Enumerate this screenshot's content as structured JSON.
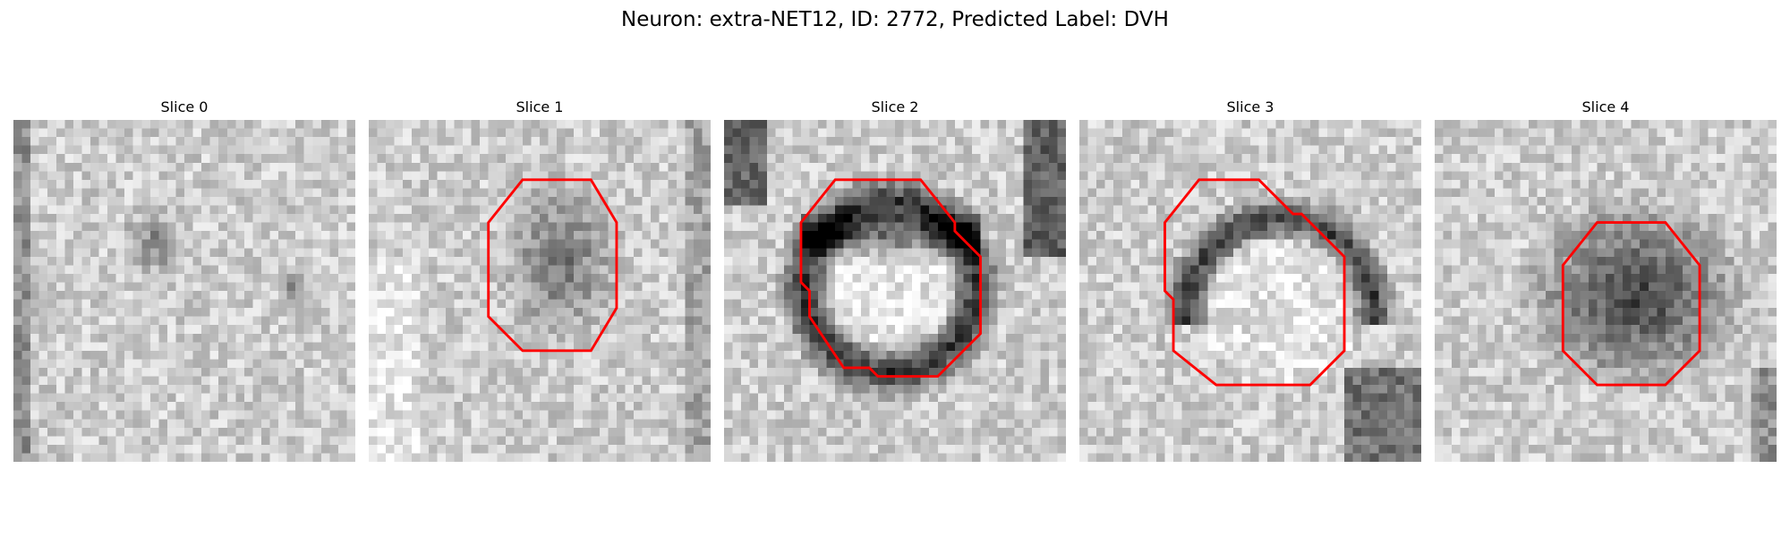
{
  "figure": {
    "title": "Neuron: extra-NET12, ID: 2772, Predicted Label: DVH"
  },
  "overlay_color": "#ff0000",
  "slices": [
    {
      "label": "Slice 0",
      "has_contour": false,
      "contour": []
    },
    {
      "label": "Slice 1",
      "has_contour": true,
      "contour": [
        [
          18,
          7
        ],
        [
          26,
          7
        ],
        [
          29,
          12
        ],
        [
          29,
          22
        ],
        [
          26,
          27
        ],
        [
          18,
          27
        ],
        [
          14,
          23
        ],
        [
          14,
          12
        ]
      ]
    },
    {
      "label": "Slice 2",
      "has_contour": true,
      "contour": [
        [
          13,
          7
        ],
        [
          23,
          7
        ],
        [
          27,
          12
        ],
        [
          27,
          13
        ],
        [
          30,
          16
        ],
        [
          30,
          25
        ],
        [
          25,
          30
        ],
        [
          18,
          30
        ],
        [
          17,
          29
        ],
        [
          14,
          29
        ],
        [
          10,
          23
        ],
        [
          10,
          20
        ],
        [
          9,
          19
        ],
        [
          9,
          12
        ]
      ]
    },
    {
      "label": "Slice 3",
      "has_contour": true,
      "contour": [
        [
          14,
          7
        ],
        [
          21,
          7
        ],
        [
          25,
          11
        ],
        [
          26,
          11
        ],
        [
          31,
          16
        ],
        [
          31,
          27
        ],
        [
          27,
          31
        ],
        [
          16,
          31
        ],
        [
          11,
          27
        ],
        [
          11,
          21
        ],
        [
          10,
          20
        ],
        [
          10,
          12
        ]
      ]
    },
    {
      "label": "Slice 4",
      "has_contour": true,
      "contour": [
        [
          19,
          12
        ],
        [
          27,
          12
        ],
        [
          31,
          17
        ],
        [
          31,
          27
        ],
        [
          27,
          31
        ],
        [
          19,
          31
        ],
        [
          15,
          27
        ],
        [
          15,
          17
        ]
      ]
    }
  ]
}
